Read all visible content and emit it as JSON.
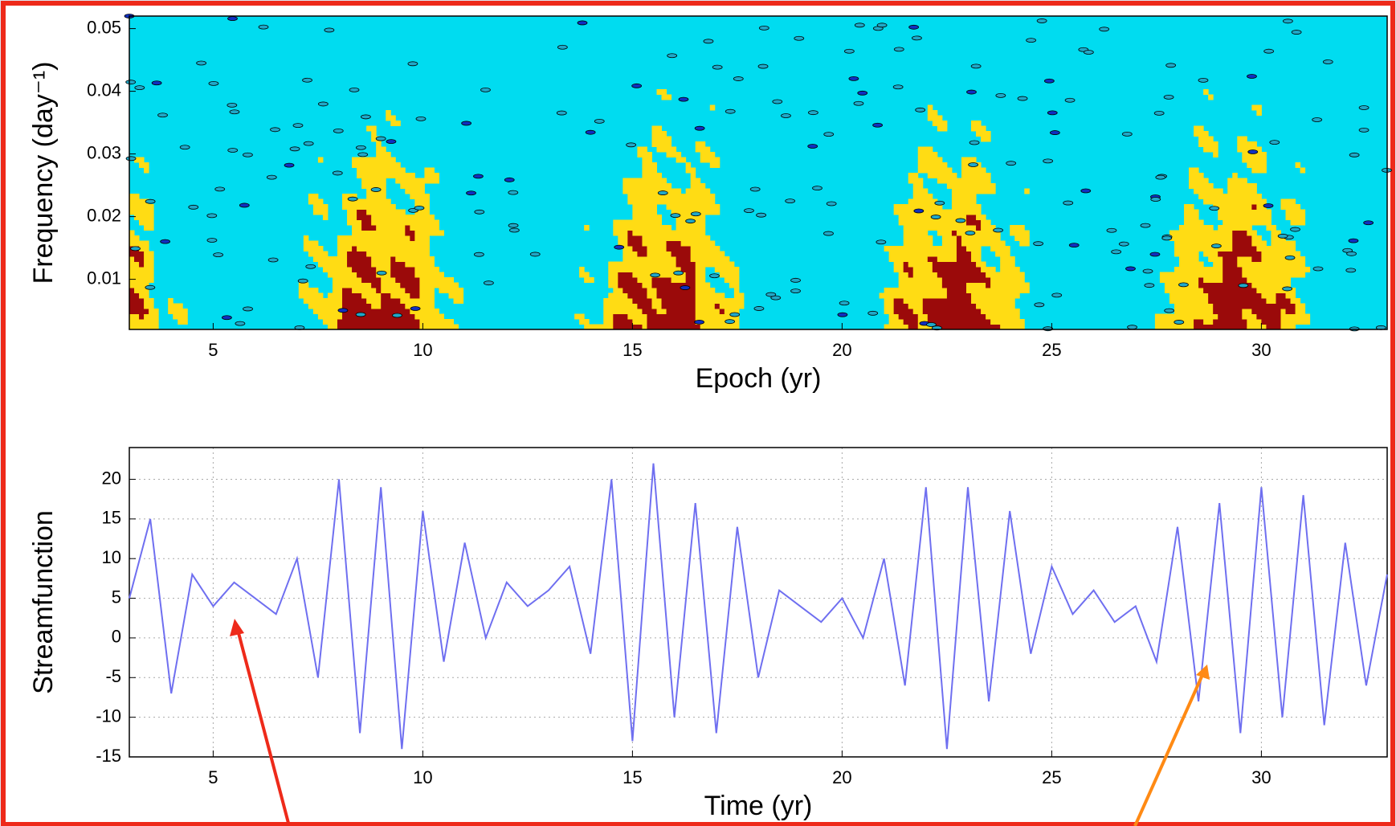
{
  "chart_data": [
    {
      "type": "contour",
      "y_label": "Frequency (day⁻¹)",
      "x_label": "Epoch (yr)",
      "xlim": [
        3,
        33
      ],
      "ylim": [
        0.002,
        0.052
      ],
      "xticks": [
        5,
        10,
        15,
        20,
        25,
        30
      ],
      "yticks": [
        0.01,
        0.02,
        0.03,
        0.04,
        0.05
      ],
      "colors": [
        "#00dcf0",
        "#ffdc14",
        "#9b0a0a",
        "#1030c0"
      ],
      "grid": false
    },
    {
      "type": "line",
      "y_label": "Streamfunction",
      "x_label": "Time (yr)",
      "xlim": [
        3,
        33
      ],
      "ylim": [
        -15,
        24
      ],
      "xticks": [
        5,
        10,
        15,
        20,
        25,
        30
      ],
      "yticks": [
        -15,
        -10,
        -5,
        0,
        5,
        10,
        15,
        20
      ],
      "grid": true,
      "series": [
        {
          "color": "#6f6ff0",
          "x": [
            3.0,
            3.5,
            4.0,
            4.5,
            5.0,
            5.5,
            6.0,
            6.5,
            7.0,
            7.5,
            8.0,
            8.5,
            9.0,
            9.5,
            10.0,
            10.5,
            11.0,
            11.5,
            12.0,
            12.5,
            13.0,
            13.5,
            14.0,
            14.5,
            15.0,
            15.5,
            16.0,
            16.5,
            17.0,
            17.5,
            18.0,
            18.5,
            19.0,
            19.5,
            20.0,
            20.5,
            21.0,
            21.5,
            22.0,
            22.5,
            23.0,
            23.5,
            24.0,
            24.5,
            25.0,
            25.5,
            26.0,
            26.5,
            27.0,
            27.5,
            28.0,
            28.5,
            29.0,
            29.5,
            30.0,
            30.5,
            31.0,
            31.5,
            32.0,
            32.5,
            33.0
          ],
          "values": [
            5,
            15,
            -7,
            8,
            4,
            7,
            5,
            3,
            10,
            -5,
            20,
            -12,
            19,
            -14,
            16,
            -3,
            12,
            0,
            7,
            4,
            6,
            9,
            -2,
            20,
            -13,
            22,
            -10,
            17,
            -12,
            14,
            -5,
            6,
            4,
            2,
            5,
            0,
            10,
            -6,
            19,
            -14,
            19,
            -8,
            16,
            -2,
            9,
            3,
            6,
            2,
            4,
            -3,
            14,
            -8,
            17,
            -12,
            19,
            -10,
            18,
            -11,
            12,
            -6,
            8
          ]
        }
      ]
    }
  ]
}
